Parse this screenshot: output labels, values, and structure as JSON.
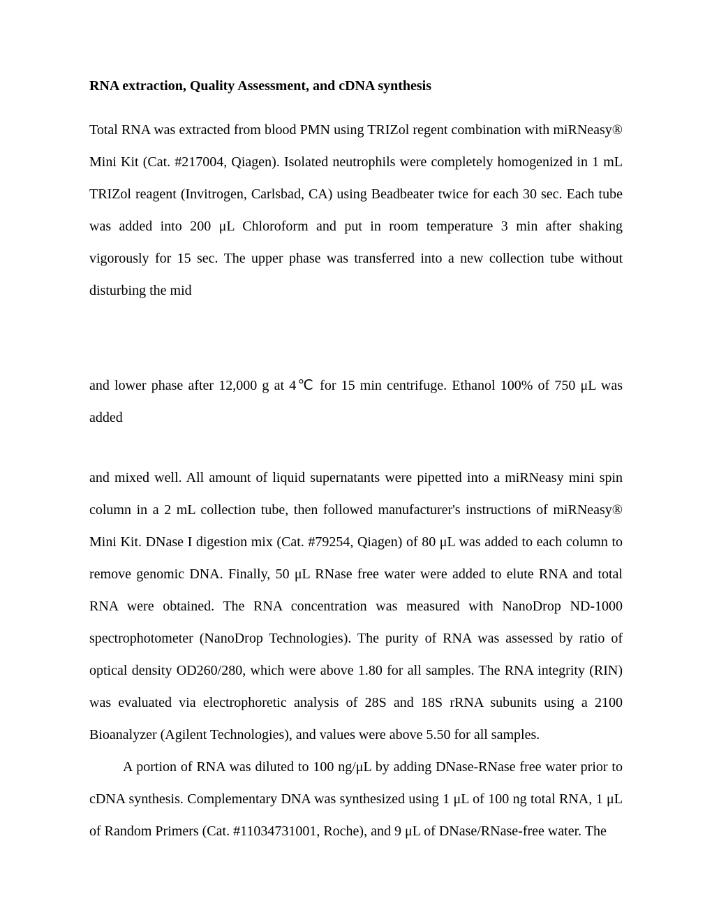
{
  "doc": {
    "heading": "RNA extraction, Quality Assessment, and cDNA synthesis",
    "p1": "Total RNA was extracted from blood PMN using TRIZol regent combination with miRNeasy® Mini Kit (Cat. #217004, Qiagen). Isolated neutrophils were completely homogenized in 1 mL TRIZol reagent (Invitrogen, Carlsbad, CA) using Beadbeater twice for each 30 sec. Each tube was added into 200 μL Chloroform and put in room temperature 3 min after shaking vigorously for 15 sec. The upper phase was transferred into a new collection tube without disturbing the mid",
    "p2": "and lower phase after 12,000 g at 4℃ for 15 min centrifuge. Ethanol 100% of 750 μL was added",
    "p3": "and mixed well. All amount of liquid supernatants were pipetted into a miRNeasy mini spin column in a 2 mL collection tube, then followed manufacturer's instructions of miRNeasy® Mini Kit. DNase I digestion mix (Cat. #79254, Qiagen) of 80 μL was added to each column to remove genomic DNA. Finally, 50 μL RNase free water were added to elute RNA and total RNA were obtained.  The RNA concentration was measured with NanoDrop ND-1000 spectrophotometer (NanoDrop Technologies). The purity of RNA was assessed by ratio of optical density OD260/280, which were above 1.80 for all samples. The RNA integrity (RIN) was evaluated via electrophoretic analysis of 28S and 18S rRNA subunits using a 2100 Bioanalyzer (Agilent Technologies), and values were above 5.50 for all samples.",
    "p4": "A portion of RNA was diluted to 100 ng/μL by adding DNase-RNase free water prior to cDNA synthesis. Complementary DNA was synthesized using 1 μL of 100 ng total RNA, 1 μL of Random Primers (Cat. #11034731001, Roche), and 9 μL of DNase/RNase-free water. The"
  }
}
